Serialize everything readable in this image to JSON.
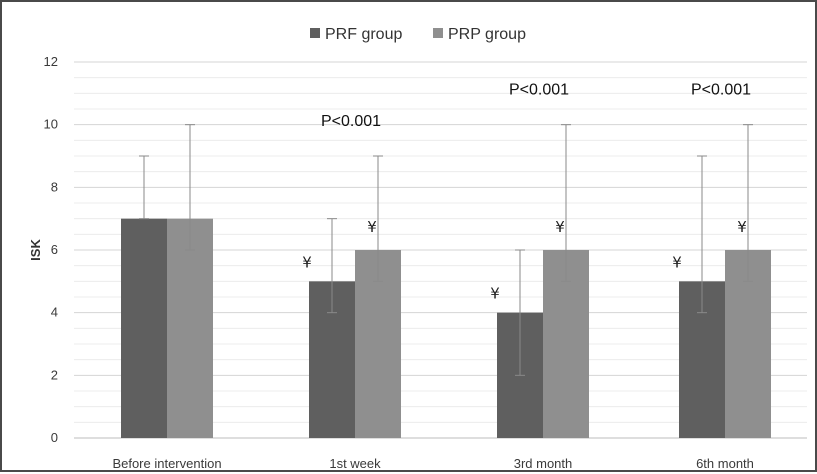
{
  "chart_data": {
    "type": "bar",
    "categories": [
      "Before intervention",
      "1st week",
      "3rd month",
      "6th month"
    ],
    "series": [
      {
        "name": "PRF group",
        "values": [
          7,
          5,
          4,
          5
        ],
        "error_low": [
          7,
          4,
          2,
          4
        ],
        "error_high": [
          9,
          7,
          6,
          9
        ],
        "significance": [
          "",
          "¥",
          "¥",
          "¥"
        ],
        "color": "#5f5f5f"
      },
      {
        "name": "PRP group",
        "values": [
          7,
          6,
          6,
          6
        ],
        "error_low": [
          6,
          5,
          5,
          5
        ],
        "error_high": [
          10,
          9,
          10,
          10
        ],
        "significance": [
          "",
          "¥",
          "¥",
          "¥"
        ],
        "color": "#8f8f8f"
      }
    ],
    "annotations": [
      "",
      "P<0.001",
      "P<0.001",
      "P<0.001"
    ],
    "xlabel": "",
    "ylabel": "ISK",
    "ylim": [
      0,
      12
    ],
    "yticks": [
      0,
      2,
      4,
      6,
      8,
      10,
      12
    ],
    "grid": true,
    "legend_position": "top-center"
  }
}
